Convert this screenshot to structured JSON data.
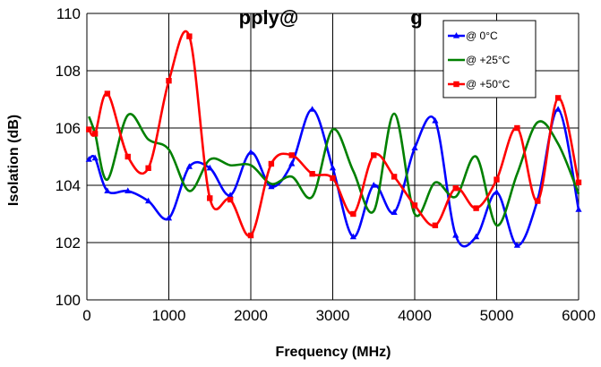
{
  "chart_data": {
    "type": "line",
    "title_visible": "pply@",
    "title_suffix": "g",
    "xlabel": "Frequency (MHz)",
    "ylabel": "Isolation (dB)",
    "xlim": [
      0,
      6000
    ],
    "ylim": [
      100,
      110
    ],
    "xticks": [
      0,
      1000,
      2000,
      3000,
      4000,
      5000,
      6000
    ],
    "yticks": [
      100,
      102,
      104,
      106,
      108,
      110
    ],
    "grid": true,
    "legend_position": "top-right",
    "series": [
      {
        "name": "@ 0°C",
        "color": "#0000ff",
        "marker": "triangle",
        "points": [
          [
            25,
            104.9
          ],
          [
            100,
            104.95
          ],
          [
            250,
            103.8
          ],
          [
            500,
            103.8
          ],
          [
            750,
            103.45
          ],
          [
            1000,
            102.85
          ],
          [
            1250,
            104.65
          ],
          [
            1500,
            104.6
          ],
          [
            1750,
            103.65
          ],
          [
            2000,
            105.15
          ],
          [
            2250,
            103.95
          ],
          [
            2500,
            104.75
          ],
          [
            2750,
            106.65
          ],
          [
            3000,
            104.6
          ],
          [
            3250,
            102.2
          ],
          [
            3500,
            104.0
          ],
          [
            3750,
            103.05
          ],
          [
            4000,
            105.3
          ],
          [
            4250,
            106.25
          ],
          [
            4500,
            102.25
          ],
          [
            4750,
            102.2
          ],
          [
            5000,
            103.75
          ],
          [
            5250,
            101.9
          ],
          [
            5500,
            103.5
          ],
          [
            5750,
            106.65
          ],
          [
            6000,
            103.15
          ]
        ]
      },
      {
        "name": "@ +25°C",
        "color": "#008000",
        "marker": "none",
        "points": [
          [
            25,
            106.4
          ],
          [
            100,
            105.8
          ],
          [
            250,
            104.2
          ],
          [
            500,
            106.45
          ],
          [
            750,
            105.6
          ],
          [
            1000,
            105.25
          ],
          [
            1250,
            103.8
          ],
          [
            1500,
            104.9
          ],
          [
            1750,
            104.7
          ],
          [
            2000,
            104.7
          ],
          [
            2250,
            104.05
          ],
          [
            2500,
            104.3
          ],
          [
            2750,
            103.6
          ],
          [
            3000,
            105.95
          ],
          [
            3250,
            104.5
          ],
          [
            3500,
            103.1
          ],
          [
            3750,
            106.5
          ],
          [
            4000,
            103.0
          ],
          [
            4250,
            104.1
          ],
          [
            4500,
            103.6
          ],
          [
            4750,
            105.0
          ],
          [
            5000,
            102.6
          ],
          [
            5250,
            104.4
          ],
          [
            5500,
            106.2
          ],
          [
            5750,
            105.45
          ],
          [
            6000,
            103.7
          ]
        ]
      },
      {
        "name": "@ +50°C",
        "color": "#ff0000",
        "marker": "square",
        "points": [
          [
            25,
            105.95
          ],
          [
            100,
            105.8
          ],
          [
            250,
            107.2
          ],
          [
            500,
            105.0
          ],
          [
            750,
            104.6
          ],
          [
            1000,
            107.65
          ],
          [
            1250,
            109.2
          ],
          [
            1500,
            103.55
          ],
          [
            1750,
            103.5
          ],
          [
            2000,
            102.25
          ],
          [
            2250,
            104.75
          ],
          [
            2500,
            105.05
          ],
          [
            2750,
            104.4
          ],
          [
            3000,
            104.25
          ],
          [
            3250,
            103.0
          ],
          [
            3500,
            105.05
          ],
          [
            3750,
            104.3
          ],
          [
            4000,
            103.3
          ],
          [
            4250,
            102.6
          ],
          [
            4500,
            103.9
          ],
          [
            4750,
            103.2
          ],
          [
            5000,
            104.2
          ],
          [
            5250,
            106.0
          ],
          [
            5500,
            103.45
          ],
          [
            5750,
            107.05
          ],
          [
            6000,
            104.1
          ]
        ]
      }
    ]
  }
}
